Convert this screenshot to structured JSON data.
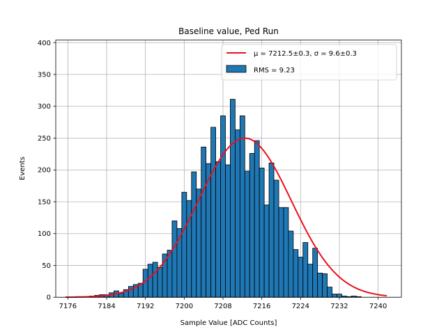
{
  "chart_data": {
    "type": "bar",
    "title": "Baseline value, Ped Run",
    "xlabel": "Sample Value [ADC Counts]",
    "ylabel": "Events",
    "xlim": [
      7173.5,
      7244.8
    ],
    "ylim": [
      0,
      404
    ],
    "xticks": [
      7176,
      7184,
      7192,
      7200,
      7208,
      7216,
      7224,
      7232,
      7240
    ],
    "yticks": [
      0,
      50,
      100,
      150,
      200,
      250,
      300,
      350,
      400
    ],
    "grid": true,
    "legend_position": "top-right",
    "colors": {
      "bars": "#1f77b4",
      "fit": "#e8111d",
      "grid": "#b0b0b0"
    },
    "histogram": {
      "name": "RMS = 9.23",
      "bin_start": 7175.5,
      "bin_width": 1.0,
      "counts": [
        0,
        0,
        1,
        1,
        1,
        2,
        3,
        4,
        4,
        7,
        10,
        6,
        12,
        17,
        20,
        22,
        44,
        52,
        55,
        47,
        68,
        74,
        120,
        108,
        165,
        152,
        197,
        170,
        236,
        210,
        267,
        213,
        285,
        208,
        311,
        263,
        285,
        198,
        226,
        246,
        203,
        145,
        211,
        184,
        141,
        141,
        104,
        75,
        63,
        86,
        52,
        77,
        38,
        37,
        16,
        5,
        5,
        2,
        1,
        2,
        1,
        0,
        0,
        0,
        0,
        0
      ]
    },
    "fit": {
      "name": "μ = 7212.5±0.3, σ = 9.6±0.3",
      "type": "gaussian",
      "mu": 7212.5,
      "sigma": 9.6,
      "amplitude": 250,
      "x_range": [
        7175.5,
        7241.8
      ]
    }
  }
}
